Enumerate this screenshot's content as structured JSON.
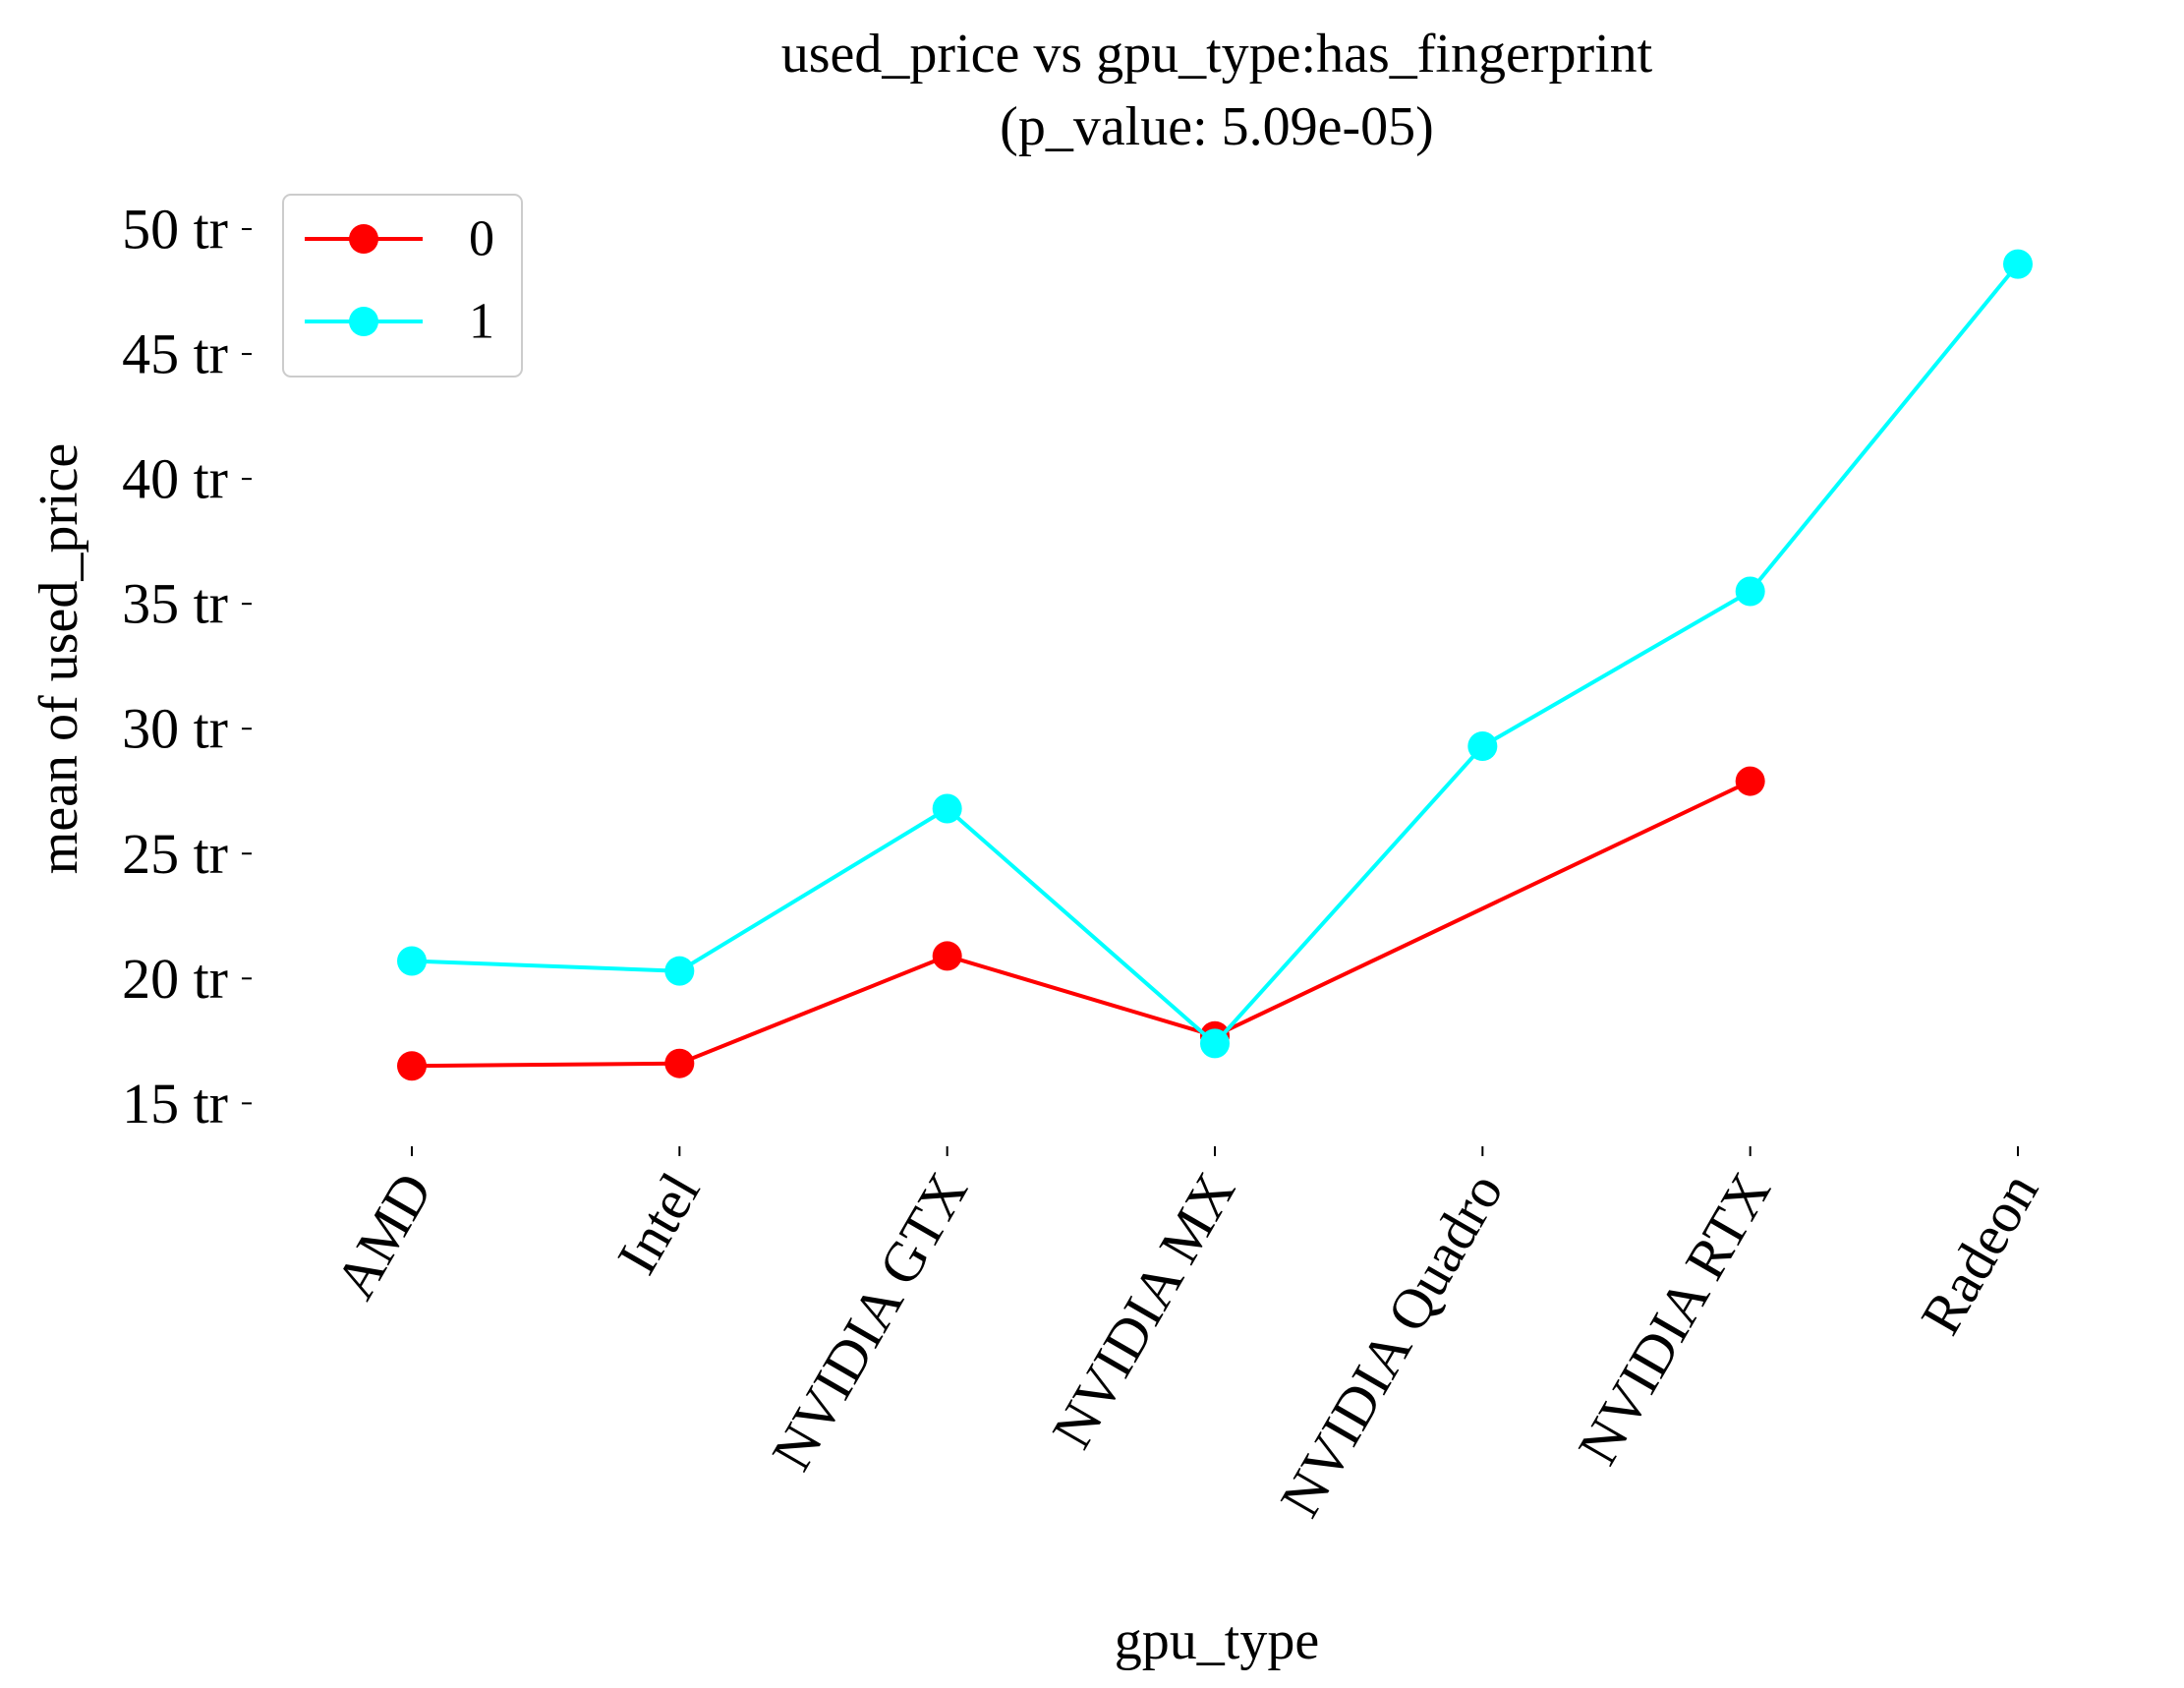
{
  "chart_data": {
    "type": "line",
    "title": "used_price vs gpu_type:has_fingerprint",
    "subtitle": "(p_value: 5.09e-05)",
    "xlabel": "gpu_type",
    "ylabel": "mean of used_price",
    "categories": [
      "AMD",
      "Intel",
      "NVIDIA GTX",
      "NVIDIA MX",
      "NVIDIA Quadro",
      "NVIDIA RTX",
      "Radeon"
    ],
    "y_ticks": [
      {
        "value": 15,
        "label": "15 tr"
      },
      {
        "value": 20,
        "label": "20 tr"
      },
      {
        "value": 25,
        "label": "25 tr"
      },
      {
        "value": 30,
        "label": "30 tr"
      },
      {
        "value": 35,
        "label": "35 tr"
      },
      {
        "value": 40,
        "label": "40 tr"
      },
      {
        "value": 45,
        "label": "45 tr"
      },
      {
        "value": 50,
        "label": "50 tr"
      }
    ],
    "ylim": [
      13.4,
      51.3
    ],
    "grid": false,
    "legend": {
      "placement": "top-left"
    },
    "series": [
      {
        "name": "0",
        "color": "#ff0000",
        "values": [
          16.5,
          16.6,
          20.9,
          17.7,
          null,
          27.9,
          null
        ]
      },
      {
        "name": "1",
        "color": "#00ffff",
        "values": [
          20.7,
          20.3,
          26.8,
          17.4,
          29.3,
          35.5,
          48.6
        ]
      }
    ]
  }
}
